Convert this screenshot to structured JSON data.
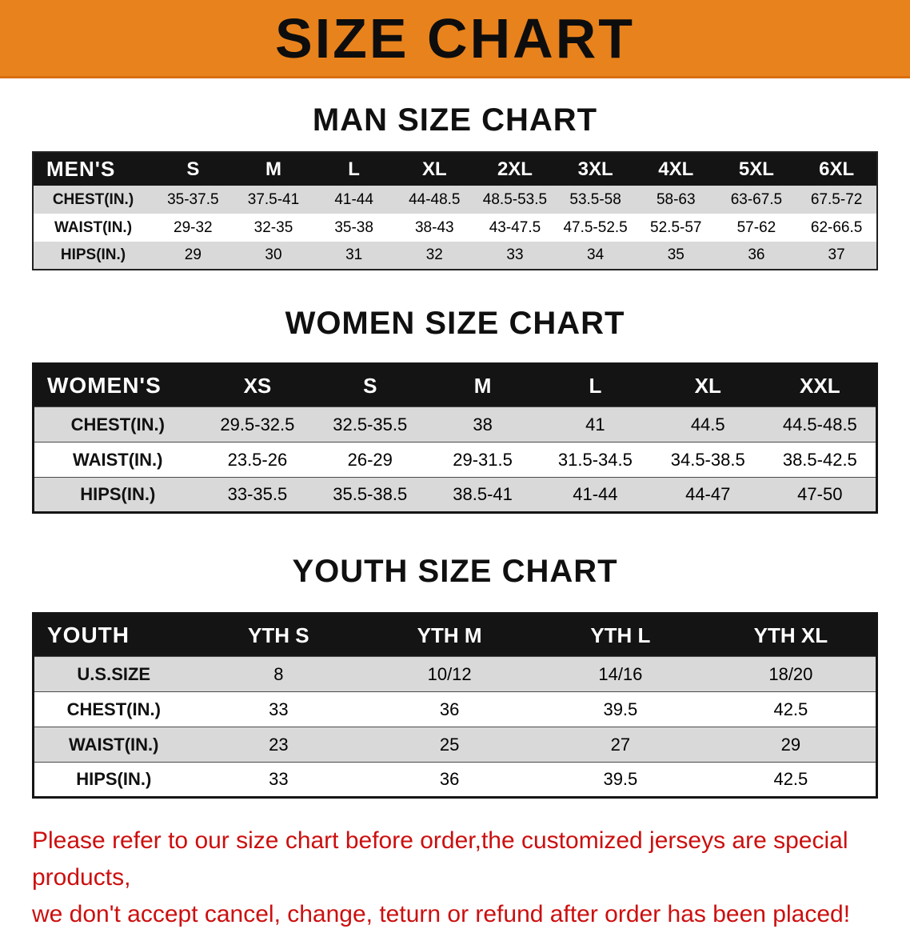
{
  "banner": {
    "title": "SIZE CHART"
  },
  "sections": {
    "men": {
      "heading": "MAN SIZE CHART"
    },
    "women": {
      "heading": "WOMEN SIZE CHART"
    },
    "youth": {
      "heading": "YOUTH SIZE CHART"
    }
  },
  "tables": {
    "men": {
      "header": [
        "MEN'S",
        "S",
        "M",
        "L",
        "XL",
        "2XL",
        "3XL",
        "4XL",
        "5XL",
        "6XL"
      ],
      "rows": [
        {
          "label": "CHEST(IN.)",
          "values": [
            "35-37.5",
            "37.5-41",
            "41-44",
            "44-48.5",
            "48.5-53.5",
            "53.5-58",
            "58-63",
            "63-67.5",
            "67.5-72"
          ]
        },
        {
          "label": "WAIST(IN.)",
          "values": [
            "29-32",
            "32-35",
            "35-38",
            "38-43",
            "43-47.5",
            "47.5-52.5",
            "52.5-57",
            "57-62",
            "62-66.5"
          ]
        },
        {
          "label": "HIPS(IN.)",
          "values": [
            "29",
            "30",
            "31",
            "32",
            "33",
            "34",
            "35",
            "36",
            "37"
          ]
        }
      ]
    },
    "women": {
      "header": [
        "WOMEN'S",
        "XS",
        "S",
        "M",
        "L",
        "XL",
        "XXL"
      ],
      "rows": [
        {
          "label": "CHEST(IN.)",
          "values": [
            "29.5-32.5",
            "32.5-35.5",
            "38",
            "41",
            "44.5",
            "44.5-48.5"
          ]
        },
        {
          "label": "WAIST(IN.)",
          "values": [
            "23.5-26",
            "26-29",
            "29-31.5",
            "31.5-34.5",
            "34.5-38.5",
            "38.5-42.5"
          ]
        },
        {
          "label": "HIPS(IN.)",
          "values": [
            "33-35.5",
            "35.5-38.5",
            "38.5-41",
            "41-44",
            "44-47",
            "47-50"
          ]
        }
      ]
    },
    "youth": {
      "header": [
        "YOUTH",
        "YTH S",
        "YTH M",
        "YTH L",
        "YTH XL"
      ],
      "rows": [
        {
          "label": "U.S.SIZE",
          "values": [
            "8",
            "10/12",
            "14/16",
            "18/20"
          ]
        },
        {
          "label": "CHEST(IN.)",
          "values": [
            "33",
            "36",
            "39.5",
            "42.5"
          ]
        },
        {
          "label": "WAIST(IN.)",
          "values": [
            "23",
            "25",
            "27",
            "29"
          ]
        },
        {
          "label": "HIPS(IN.)",
          "values": [
            "33",
            "36",
            "39.5",
            "42.5"
          ]
        }
      ]
    }
  },
  "disclaimer": {
    "line1": "Please refer to our size chart before order,the customized jerseys are special products,",
    "line2": "we don't accept cancel, change, teturn or refund after order has been placed!"
  },
  "colors": {
    "banner_bg": "#E8821C",
    "table_header_bg": "#141414",
    "row_stripe": "#d9d9d9",
    "disclaimer_red": "#cc0f0f"
  }
}
